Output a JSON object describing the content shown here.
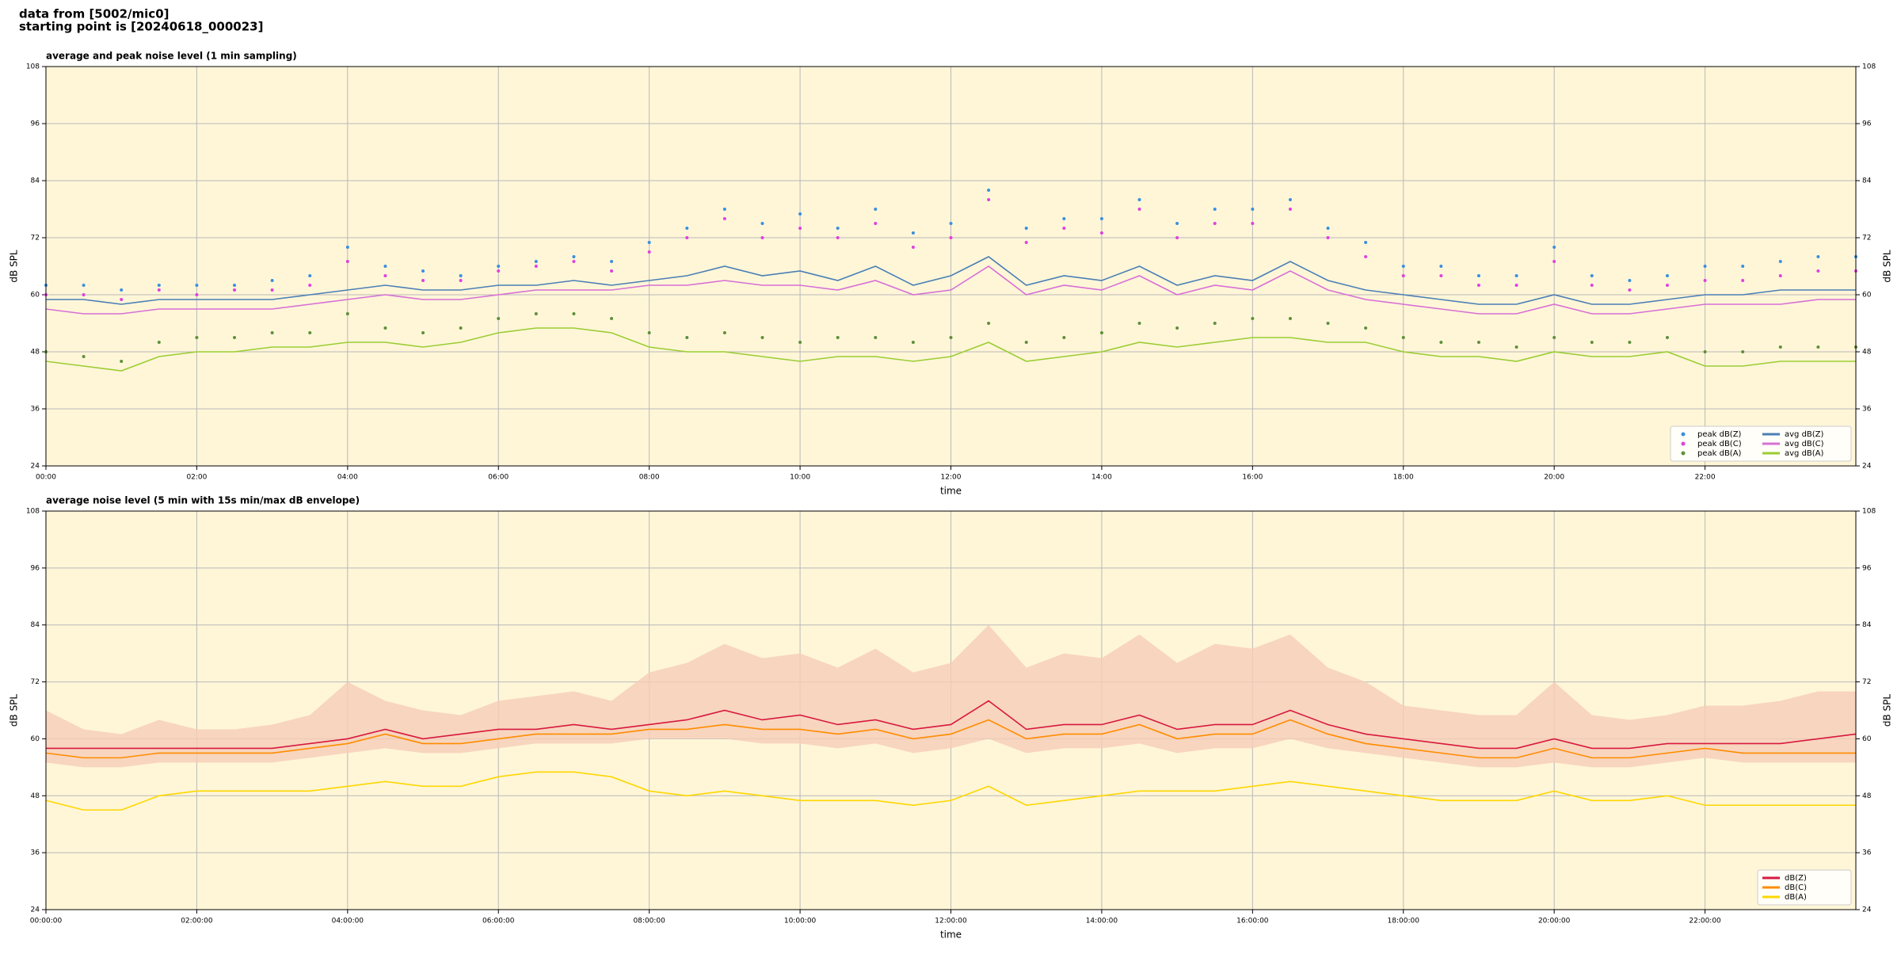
{
  "header": {
    "lines": [
      "data from [5002/mic0]",
      "starting point is [20240618_000023]"
    ]
  },
  "chart_data": [
    {
      "type": "line",
      "title": "average and peak noise level (1 min sampling)",
      "x_label": "time",
      "y_label": "dB SPL",
      "xlim": [
        0,
        24
      ],
      "ylim": [
        24,
        108
      ],
      "yticks": [
        24,
        36,
        48,
        60,
        72,
        84,
        96,
        108
      ],
      "xticks": [
        {
          "value": 0,
          "label": "00:00"
        },
        {
          "value": 2,
          "label": "02:00"
        },
        {
          "value": 4,
          "label": "04:00"
        },
        {
          "value": 6,
          "label": "06:00"
        },
        {
          "value": 8,
          "label": "08:00"
        },
        {
          "value": 10,
          "label": "10:00"
        },
        {
          "value": 12,
          "label": "12:00"
        },
        {
          "value": 14,
          "label": "14:00"
        },
        {
          "value": 16,
          "label": "16:00"
        },
        {
          "value": 18,
          "label": "18:00"
        },
        {
          "value": 20,
          "label": "20:00"
        },
        {
          "value": 22,
          "label": "22:00"
        }
      ],
      "grid": true,
      "legend": "lower right",
      "legend_columns": 2,
      "x": [
        0,
        0.5,
        1,
        1.5,
        2,
        2.5,
        3,
        3.5,
        4,
        4.5,
        5,
        5.5,
        6,
        6.5,
        7,
        7.5,
        8,
        8.5,
        9,
        9.5,
        10,
        10.5,
        11,
        11.5,
        12,
        12.5,
        13,
        13.5,
        14,
        14.5,
        15,
        15.5,
        16,
        16.5,
        17,
        17.5,
        18,
        18.5,
        19,
        19.5,
        20,
        20.5,
        21,
        21.5,
        22,
        22.5,
        23,
        23.5,
        24
      ],
      "series": [
        {
          "name": "peak dB(Z)",
          "style": "dots",
          "color": "#3a8fe0",
          "values": [
            62,
            62,
            61,
            62,
            62,
            62,
            63,
            64,
            70,
            66,
            65,
            64,
            66,
            67,
            68,
            67,
            71,
            74,
            78,
            75,
            77,
            74,
            78,
            73,
            75,
            82,
            74,
            76,
            76,
            80,
            75,
            78,
            78,
            80,
            74,
            71,
            66,
            66,
            64,
            64,
            70,
            64,
            63,
            64,
            66,
            66,
            67,
            68,
            68
          ]
        },
        {
          "name": "peak dB(C)",
          "style": "dots",
          "color": "#e040e0",
          "values": [
            60,
            60,
            59,
            61,
            60,
            61,
            61,
            62,
            67,
            64,
            63,
            63,
            65,
            66,
            67,
            65,
            69,
            72,
            76,
            72,
            74,
            72,
            75,
            70,
            72,
            80,
            71,
            74,
            73,
            78,
            72,
            75,
            75,
            78,
            72,
            68,
            64,
            64,
            62,
            62,
            67,
            62,
            61,
            62,
            63,
            63,
            64,
            65,
            65
          ]
        },
        {
          "name": "peak dB(A)",
          "style": "dots",
          "color": "#5f8f3a",
          "values": [
            48,
            47,
            46,
            50,
            51,
            51,
            52,
            52,
            56,
            53,
            52,
            53,
            55,
            56,
            56,
            55,
            52,
            51,
            52,
            51,
            50,
            51,
            51,
            50,
            51,
            54,
            50,
            51,
            52,
            54,
            53,
            54,
            55,
            55,
            54,
            53,
            51,
            50,
            50,
            49,
            51,
            50,
            50,
            51,
            48,
            48,
            49,
            49,
            49
          ]
        },
        {
          "name": "avg dB(Z)",
          "style": "line",
          "color": "#4a7fb5",
          "values": [
            59,
            59,
            58,
            59,
            59,
            59,
            59,
            60,
            61,
            62,
            61,
            61,
            62,
            62,
            63,
            62,
            63,
            64,
            66,
            64,
            65,
            63,
            66,
            62,
            64,
            68,
            62,
            64,
            63,
            66,
            62,
            64,
            63,
            67,
            63,
            61,
            60,
            59,
            58,
            58,
            60,
            58,
            58,
            59,
            60,
            60,
            61,
            61,
            61
          ]
        },
        {
          "name": "avg dB(C)",
          "style": "line",
          "color": "#d86fd6",
          "values": [
            57,
            56,
            56,
            57,
            57,
            57,
            57,
            58,
            59,
            60,
            59,
            59,
            60,
            61,
            61,
            61,
            62,
            62,
            63,
            62,
            62,
            61,
            63,
            60,
            61,
            66,
            60,
            62,
            61,
            64,
            60,
            62,
            61,
            65,
            61,
            59,
            58,
            57,
            56,
            56,
            58,
            56,
            56,
            57,
            58,
            58,
            58,
            59,
            59
          ]
        },
        {
          "name": "avg dB(A)",
          "style": "line",
          "color": "#9acd32",
          "values": [
            46,
            45,
            44,
            47,
            48,
            48,
            49,
            49,
            50,
            50,
            49,
            50,
            52,
            53,
            53,
            52,
            49,
            48,
            48,
            47,
            46,
            47,
            47,
            46,
            47,
            50,
            46,
            47,
            48,
            50,
            49,
            50,
            51,
            51,
            50,
            50,
            48,
            47,
            47,
            46,
            48,
            47,
            47,
            48,
            45,
            45,
            46,
            46,
            46
          ]
        }
      ]
    },
    {
      "type": "line",
      "title": "average noise level (5 min with 15s min/max dB envelope)",
      "x_label": "time",
      "y_label": "dB SPL",
      "xlim": [
        0,
        24
      ],
      "ylim": [
        24,
        108
      ],
      "yticks": [
        24,
        36,
        48,
        60,
        72,
        84,
        96,
        108
      ],
      "xticks": [
        {
          "value": 0,
          "label": "00:00:00"
        },
        {
          "value": 2,
          "label": "02:00:00"
        },
        {
          "value": 4,
          "label": "04:00:00"
        },
        {
          "value": 6,
          "label": "06:00:00"
        },
        {
          "value": 8,
          "label": "08:00:00"
        },
        {
          "value": 10,
          "label": "10:00:00"
        },
        {
          "value": 12,
          "label": "12:00:00"
        },
        {
          "value": 14,
          "label": "14:00:00"
        },
        {
          "value": 16,
          "label": "16:00:00"
        },
        {
          "value": 18,
          "label": "18:00:00"
        },
        {
          "value": 20,
          "label": "20:00:00"
        },
        {
          "value": 22,
          "label": "22:00:00"
        }
      ],
      "grid": true,
      "legend": "lower right",
      "legend_columns": 1,
      "x": [
        0,
        0.5,
        1,
        1.5,
        2,
        2.5,
        3,
        3.5,
        4,
        4.5,
        5,
        5.5,
        6,
        6.5,
        7,
        7.5,
        8,
        8.5,
        9,
        9.5,
        10,
        10.5,
        11,
        11.5,
        12,
        12.5,
        13,
        13.5,
        14,
        14.5,
        15,
        15.5,
        16,
        16.5,
        17,
        17.5,
        18,
        18.5,
        19,
        19.5,
        20,
        20.5,
        21,
        21.5,
        22,
        22.5,
        23,
        23.5,
        24
      ],
      "envelope": {
        "color": "#f6cdb8",
        "min": [
          55,
          54,
          54,
          55,
          55,
          55,
          55,
          56,
          57,
          58,
          57,
          57,
          58,
          59,
          59,
          59,
          60,
          60,
          60,
          59,
          59,
          58,
          59,
          57,
          58,
          60,
          57,
          58,
          58,
          59,
          57,
          58,
          58,
          60,
          58,
          57,
          56,
          55,
          54,
          54,
          55,
          54,
          54,
          55,
          56,
          55,
          55,
          55,
          55
        ],
        "max": [
          66,
          62,
          61,
          64,
          62,
          62,
          63,
          65,
          72,
          68,
          66,
          65,
          68,
          69,
          70,
          68,
          74,
          76,
          80,
          77,
          78,
          75,
          79,
          74,
          76,
          84,
          75,
          78,
          77,
          82,
          76,
          80,
          79,
          82,
          75,
          72,
          67,
          66,
          65,
          65,
          72,
          65,
          64,
          65,
          67,
          67,
          68,
          70,
          70
        ]
      },
      "series": [
        {
          "name": "dB(Z)",
          "style": "line",
          "color": "#d7193f",
          "values": [
            58,
            58,
            58,
            58,
            58,
            58,
            58,
            59,
            60,
            62,
            60,
            61,
            62,
            62,
            63,
            62,
            63,
            64,
            66,
            64,
            65,
            63,
            64,
            62,
            63,
            68,
            62,
            63,
            63,
            65,
            62,
            63,
            63,
            66,
            63,
            61,
            60,
            59,
            58,
            58,
            60,
            58,
            58,
            59,
            59,
            59,
            59,
            60,
            61
          ]
        },
        {
          "name": "dB(C)",
          "style": "line",
          "color": "#ff8c00",
          "values": [
            57,
            56,
            56,
            57,
            57,
            57,
            57,
            58,
            59,
            61,
            59,
            59,
            60,
            61,
            61,
            61,
            62,
            62,
            63,
            62,
            62,
            61,
            62,
            60,
            61,
            64,
            60,
            61,
            61,
            63,
            60,
            61,
            61,
            64,
            61,
            59,
            58,
            57,
            56,
            56,
            58,
            56,
            56,
            57,
            58,
            57,
            57,
            57,
            57
          ]
        },
        {
          "name": "dB(A)",
          "style": "line",
          "color": "#ffd700",
          "values": [
            47,
            45,
            45,
            48,
            49,
            49,
            49,
            49,
            50,
            51,
            50,
            50,
            52,
            53,
            53,
            52,
            49,
            48,
            49,
            48,
            47,
            47,
            47,
            46,
            47,
            50,
            46,
            47,
            48,
            49,
            49,
            49,
            50,
            51,
            50,
            49,
            48,
            47,
            47,
            47,
            49,
            47,
            47,
            48,
            46,
            46,
            46,
            46,
            46
          ]
        }
      ]
    }
  ]
}
